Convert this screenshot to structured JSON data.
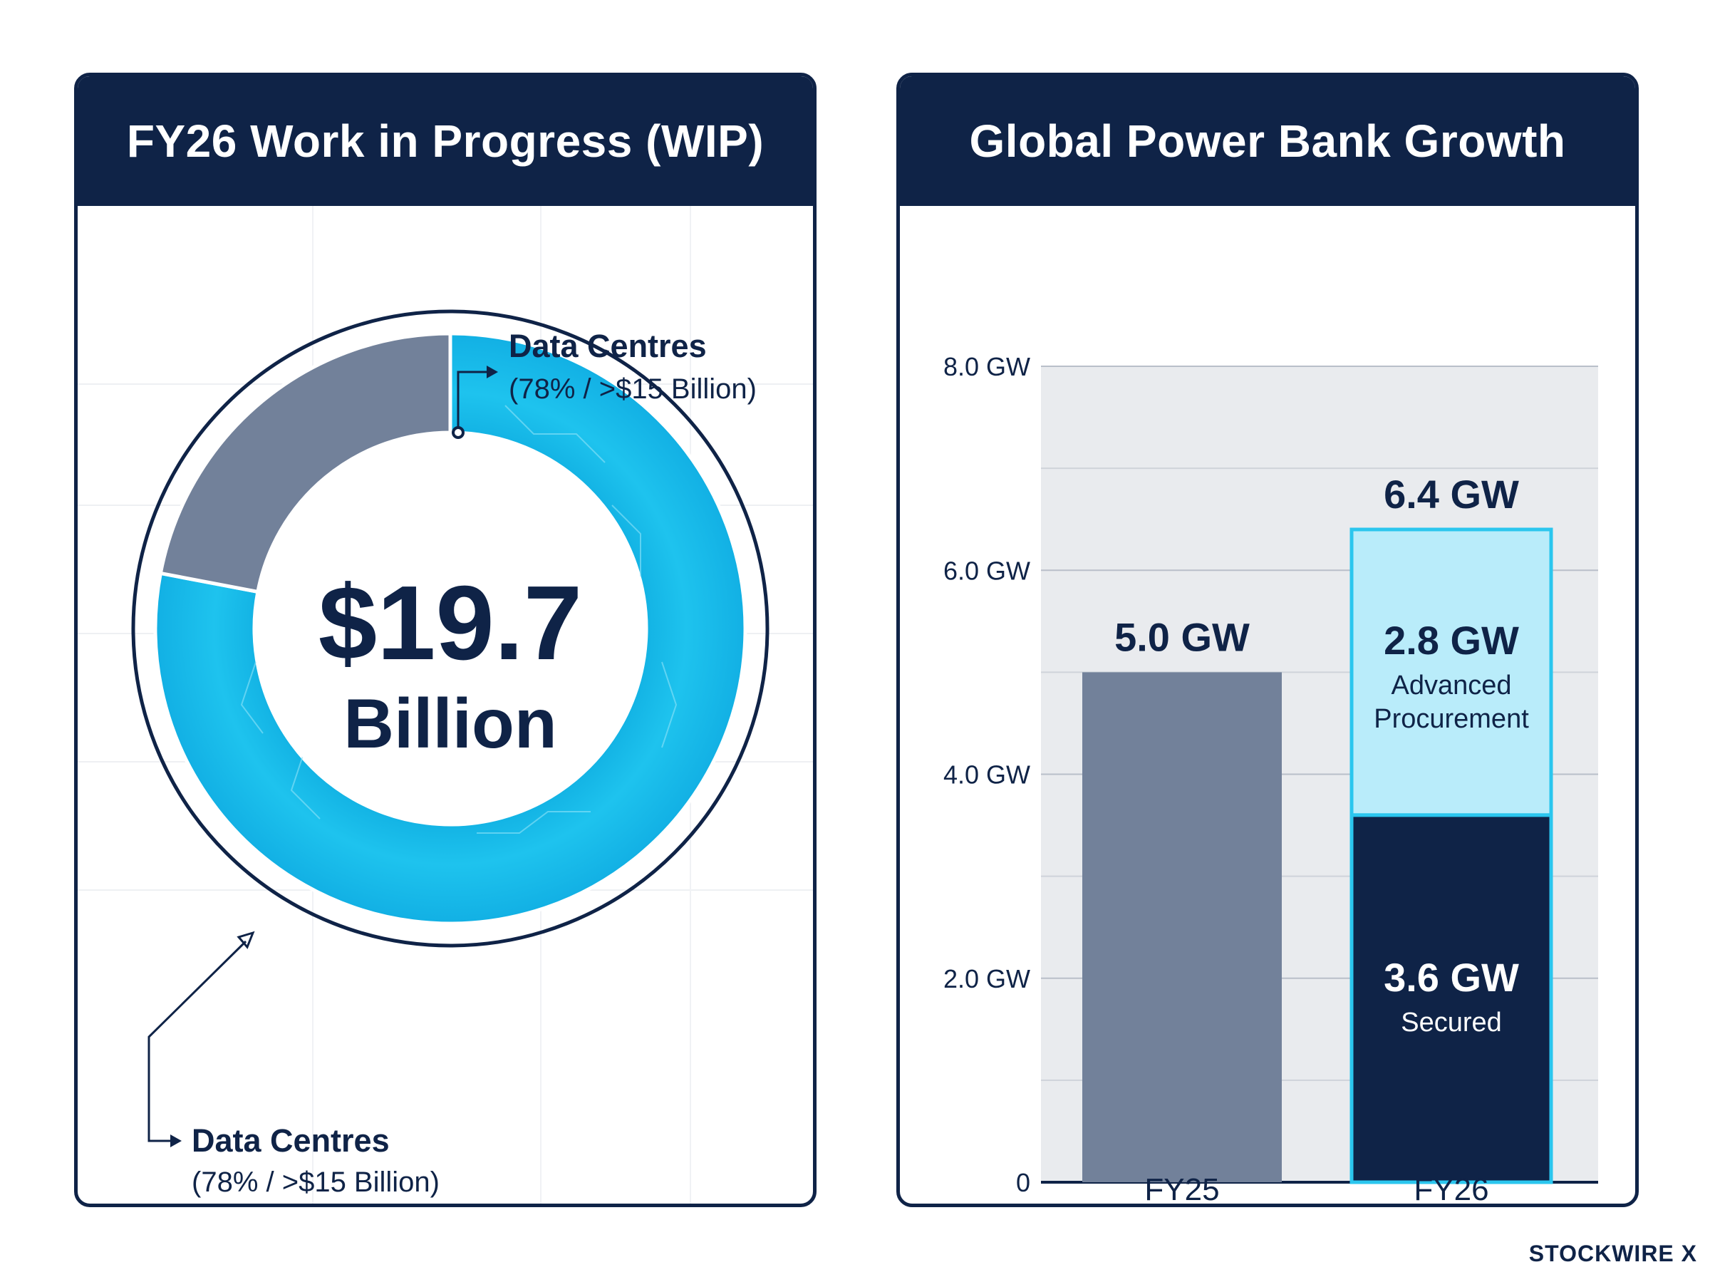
{
  "colors": {
    "navy": "#0f2347",
    "gray_segment": "#72819a",
    "cyan": "#18b9e6",
    "light_cyan": "#b9ecfa",
    "plot_bg": "#e9ebee"
  },
  "brand": "STOCKWIRE X",
  "left_panel": {
    "title": "FY26 Work in Progress (WIP)",
    "center_value": "$19.7",
    "center_unit": "Billion",
    "callout_top": {
      "label": "Data Centres",
      "detail": "(78% / >$15 Billion)"
    },
    "callout_bottom": {
      "label": "Data Centres",
      "detail": "(78% / >$15 Billion)"
    }
  },
  "right_panel": {
    "title": "Global Power Bank Growth"
  },
  "chart_data": [
    {
      "type": "pie",
      "title": "FY26 Work in Progress (WIP)",
      "total_label": "$19.7 Billion",
      "slices": [
        {
          "label": "Data Centres",
          "percent": 78,
          "color": "#18b9e6"
        },
        {
          "label": "",
          "percent": 22,
          "color": "#72819a"
        }
      ]
    },
    {
      "type": "bar",
      "title": "Global Power Bank Growth",
      "categories": [
        "FY25",
        "FY26"
      ],
      "ylim": [
        0,
        8
      ],
      "y_ticks": [
        {
          "value": 0,
          "label": "0"
        },
        {
          "value": 2,
          "label": "2.0 GW"
        },
        {
          "value": 4,
          "label": "4.0 GW"
        },
        {
          "value": 6,
          "label": "6.0 GW"
        },
        {
          "value": 8,
          "label": "8.0 GW"
        }
      ],
      "grid": true,
      "bars": [
        {
          "category": "FY25",
          "total_label": "5.0 GW",
          "segments": [
            {
              "value": 5.0,
              "color": "#72819a"
            }
          ]
        },
        {
          "category": "FY26",
          "total_label": "6.4 GW",
          "segments": [
            {
              "value": 3.6,
              "label": "3.6 GW",
              "name": "Secured",
              "color": "#0f2347"
            },
            {
              "value": 2.8,
              "label": "2.8 GW",
              "name": "Advanced Procurement",
              "color": "#b9ecfa"
            }
          ]
        }
      ]
    }
  ]
}
